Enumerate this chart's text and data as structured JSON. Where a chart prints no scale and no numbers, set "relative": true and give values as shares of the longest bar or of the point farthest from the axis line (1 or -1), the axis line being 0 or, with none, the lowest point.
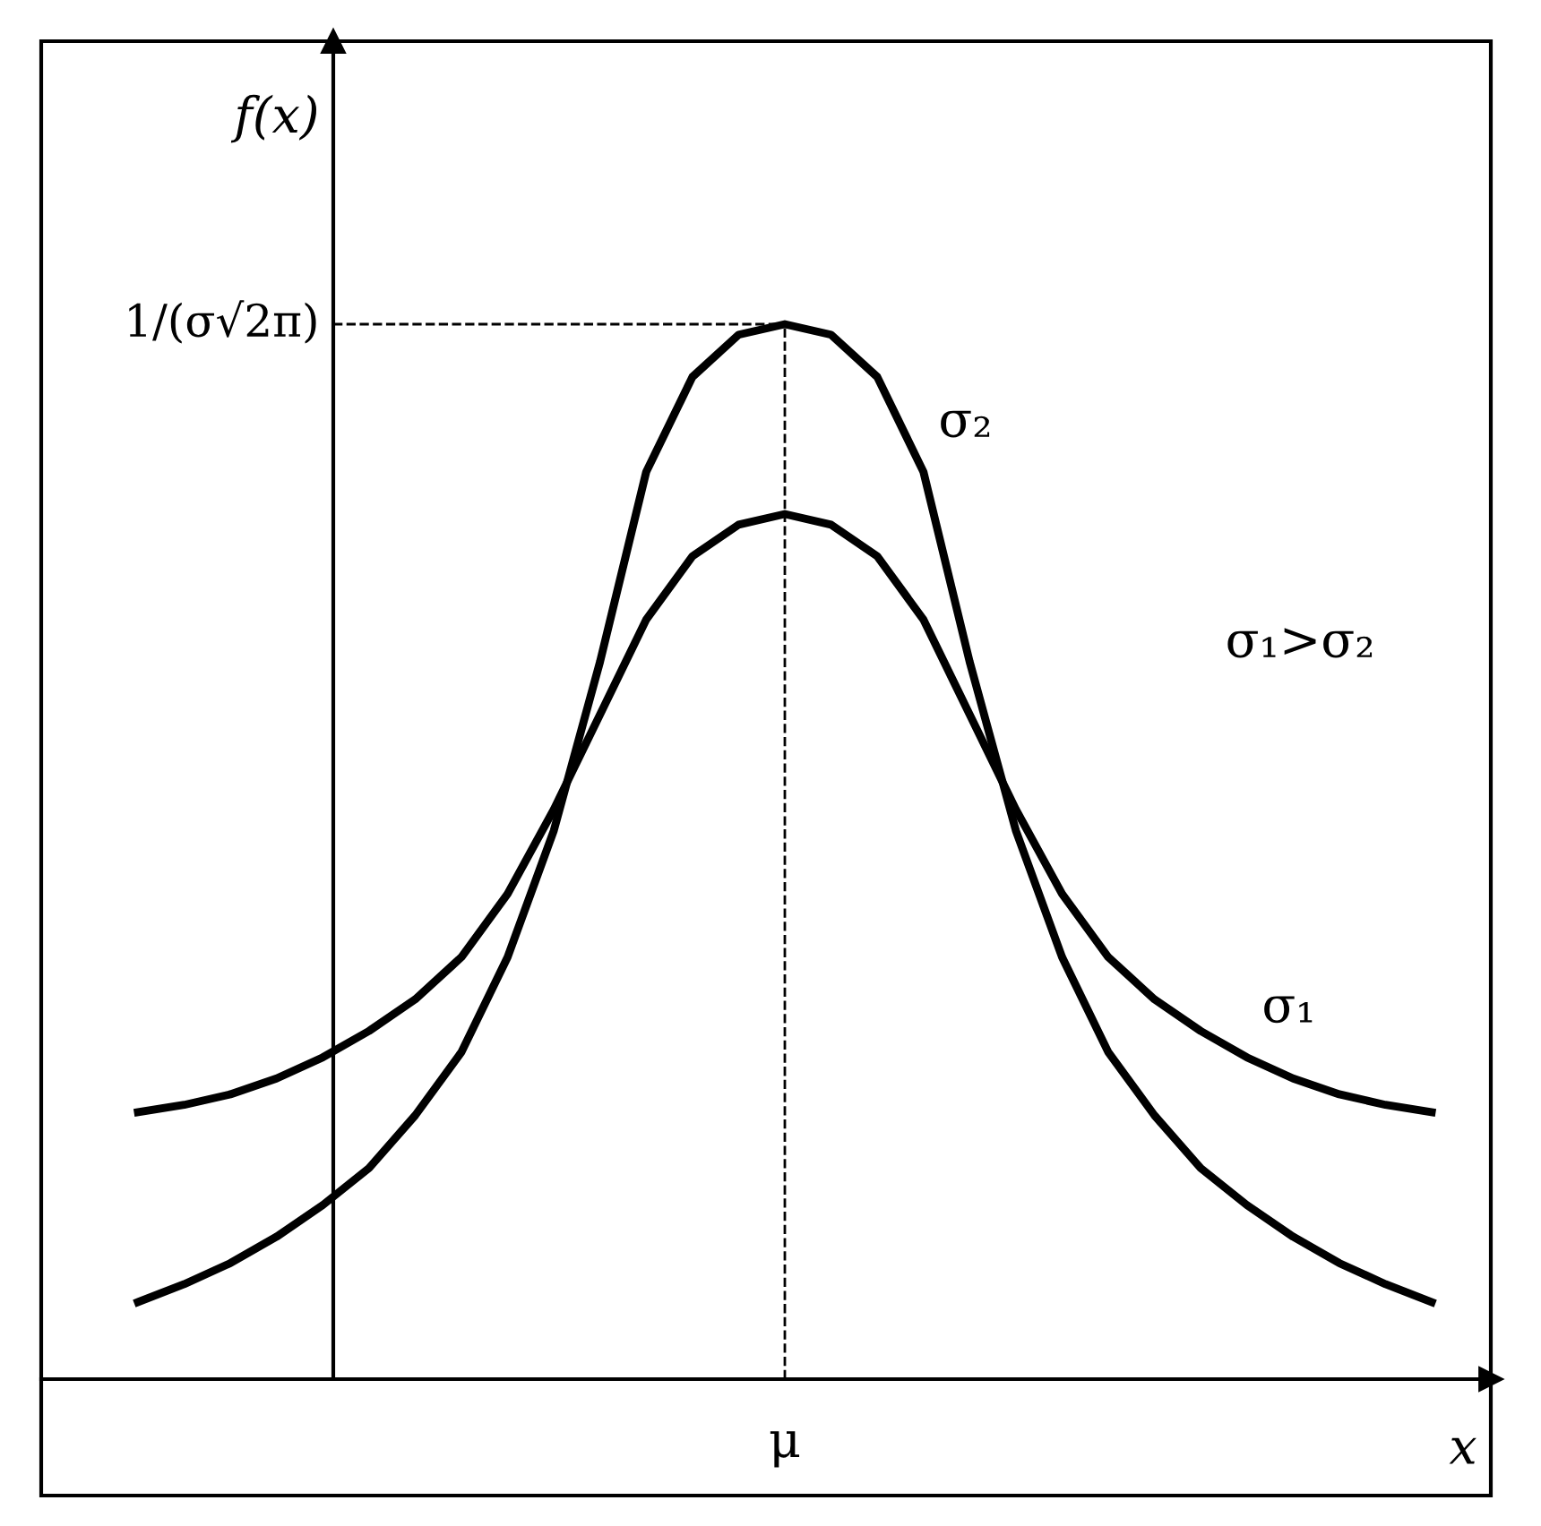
{
  "chart_data": {
    "type": "line",
    "relative": true,
    "xlabel": "x",
    "ylabel": "f(x)",
    "categories": [
      null,
      null,
      null,
      null,
      null,
      null,
      null,
      null,
      null,
      null,
      null,
      null,
      null,
      null,
      null,
      null,
      null,
      null,
      null,
      null,
      null,
      null,
      null,
      null,
      null,
      null,
      null,
      null,
      null
    ],
    "series": [
      {
        "name": "σ₂",
        "color": "#000000",
        "values": [
          0.073,
          0.09,
          0.11,
          0.135,
          0.165,
          0.2,
          0.25,
          0.31,
          0.4,
          0.52,
          0.68,
          0.86,
          0.95,
          0.99,
          1.0,
          0.99,
          0.95,
          0.86,
          0.68,
          0.52,
          0.4,
          0.31,
          0.25,
          0.2,
          0.165,
          0.135,
          0.11,
          0.09,
          0.073
        ]
      },
      {
        "name": "σ₁",
        "color": "#000000",
        "values": [
          0.253,
          0.26,
          0.27,
          0.285,
          0.305,
          0.33,
          0.36,
          0.4,
          0.46,
          0.54,
          0.63,
          0.72,
          0.78,
          0.81,
          0.82,
          0.81,
          0.78,
          0.72,
          0.63,
          0.54,
          0.46,
          0.4,
          0.36,
          0.33,
          0.305,
          0.285,
          0.27,
          0.26,
          0.253
        ]
      }
    ],
    "ref_lines": [
      {
        "axis": "y",
        "value": 1,
        "label": "1/(σ√2π)",
        "line_style": "dashed"
      }
    ],
    "annotations": [
      "σ₁>σ₂",
      "μ"
    ],
    "legend": false
  }
}
